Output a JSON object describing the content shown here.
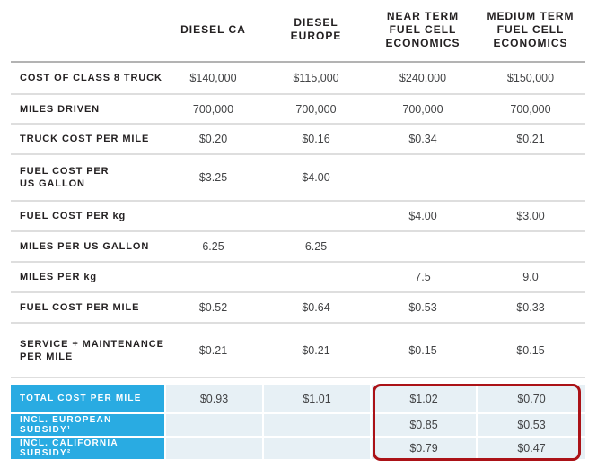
{
  "chart_data": {
    "type": "table",
    "title": "",
    "columns": [
      "DIESEL CA",
      "DIESEL EUROPE",
      "NEAR TERM FUEL CELL ECONOMICS",
      "MEDIUM TERM FUEL CELL ECONOMICS"
    ],
    "columns_display": [
      "DIESEL CA",
      "DIESEL\nEUROPE",
      "NEAR TERM\nFUEL CELL\nECONOMICS",
      "MEDIUM TERM\nFUEL CELL\nECONOMICS"
    ],
    "rows": [
      {
        "label": "COST OF CLASS 8 TRUCK",
        "values": [
          "$140,000",
          "$115,000",
          "$240,000",
          "$150,000"
        ]
      },
      {
        "label": "MILES DRIVEN",
        "values": [
          "700,000",
          "700,000",
          "700,000",
          "700,000"
        ]
      },
      {
        "label": "TRUCK COST PER MILE",
        "values": [
          "$0.20",
          "$0.16",
          "$0.34",
          "$0.21"
        ]
      },
      {
        "label": "FUEL COST PER\nUS GALLON",
        "values": [
          "$3.25",
          "$4.00",
          "",
          ""
        ]
      },
      {
        "label": "FUEL COST PER kg",
        "values": [
          "",
          "",
          "$4.00",
          "$3.00"
        ]
      },
      {
        "label": "MILES PER US GALLON",
        "values": [
          "6.25",
          "6.25",
          "",
          ""
        ]
      },
      {
        "label": "MILES PER kg",
        "values": [
          "",
          "",
          "7.5",
          "9.0"
        ]
      },
      {
        "label": "FUEL COST PER MILE",
        "values": [
          "$0.52",
          "$0.64",
          "$0.53",
          "$0.33"
        ]
      },
      {
        "label": "SERVICE + MAINTENANCE\nPER MILE",
        "values": [
          "$0.21",
          "$0.21",
          "$0.15",
          "$0.15"
        ]
      }
    ],
    "highlight_rows": [
      {
        "label": "TOTAL COST PER MILE",
        "values": [
          "$0.93",
          "$1.01",
          "$1.02",
          "$0.70"
        ]
      },
      {
        "label": "INCL. EUROPEAN SUBSIDY¹",
        "values": [
          "",
          "",
          "$0.85",
          "$0.53"
        ]
      },
      {
        "label": "INCL. CALIFORNIA SUBSIDY²",
        "values": [
          "",
          "",
          "$0.79",
          "$0.47"
        ]
      }
    ],
    "annotation": {
      "type": "highlight-box",
      "color": "#ab1217",
      "around": "NEAR TERM and MEDIUM TERM fuel cell values of the three total-cost rows"
    },
    "colors": {
      "highlight_row_label_bg": "#29abe2",
      "highlight_row_value_bg": "#e7f0f5",
      "header_rule": "#b3b3b3",
      "row_rule": "#dedede",
      "label_text": "#242122",
      "value_text": "#424345"
    }
  }
}
